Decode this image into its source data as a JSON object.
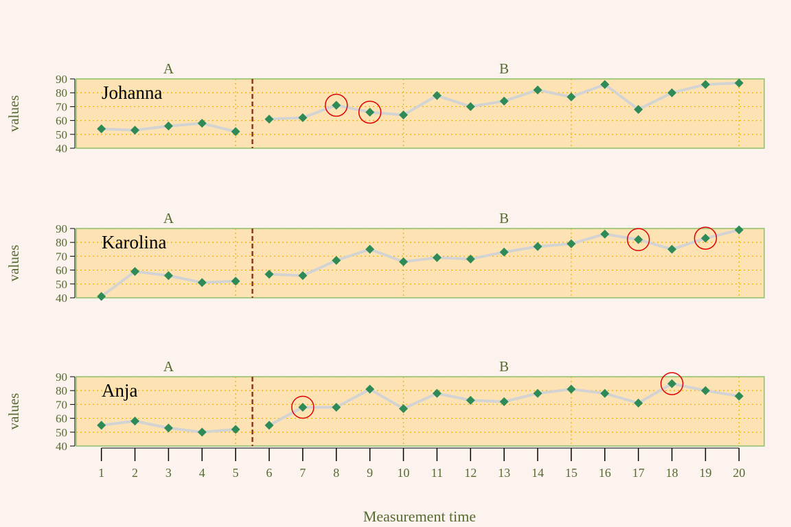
{
  "chart_data": {
    "type": "line",
    "xlabel": "Measurement time",
    "ylabel": "values",
    "x": [
      1,
      2,
      3,
      4,
      5,
      6,
      7,
      8,
      9,
      10,
      11,
      12,
      13,
      14,
      15,
      16,
      17,
      18,
      19,
      20
    ],
    "ylim": [
      40,
      90
    ],
    "yticks": [
      40,
      50,
      60,
      70,
      80,
      90
    ],
    "grid": true,
    "phases": [
      {
        "label": "A",
        "start": 1,
        "end": 5
      },
      {
        "label": "B",
        "start": 6,
        "end": 20
      }
    ],
    "phase_change_after": 5,
    "vertical_guides": [
      5,
      10,
      15,
      20
    ],
    "colors": {
      "background": "#fdf3ee",
      "panel": "#fde3b3",
      "panel_border": "#8fbf6a",
      "grid": "#f0b400",
      "line": "#d3d3d3",
      "point": "#2e8b57",
      "highlight": "#e00000",
      "phase_line": "#8b3a1a",
      "axis_text": "#556b2f"
    },
    "series": [
      {
        "name": "Johanna",
        "values": [
          54,
          53,
          56,
          58,
          52,
          61,
          62,
          71,
          66,
          64,
          78,
          70,
          74,
          82,
          77,
          86,
          68,
          80,
          86,
          87
        ],
        "highlight_x": [
          8,
          9
        ]
      },
      {
        "name": "Karolina",
        "values": [
          41,
          59,
          56,
          51,
          52,
          57,
          56,
          67,
          75,
          66,
          69,
          68,
          73,
          77,
          79,
          86,
          82,
          75,
          83,
          89
        ],
        "highlight_x": [
          17,
          19
        ]
      },
      {
        "name": "Anja",
        "values": [
          55,
          58,
          53,
          50,
          52,
          55,
          68,
          68,
          81,
          67,
          78,
          73,
          72,
          78,
          81,
          78,
          71,
          85,
          80,
          76
        ],
        "highlight_x": [
          7,
          18
        ]
      }
    ]
  }
}
